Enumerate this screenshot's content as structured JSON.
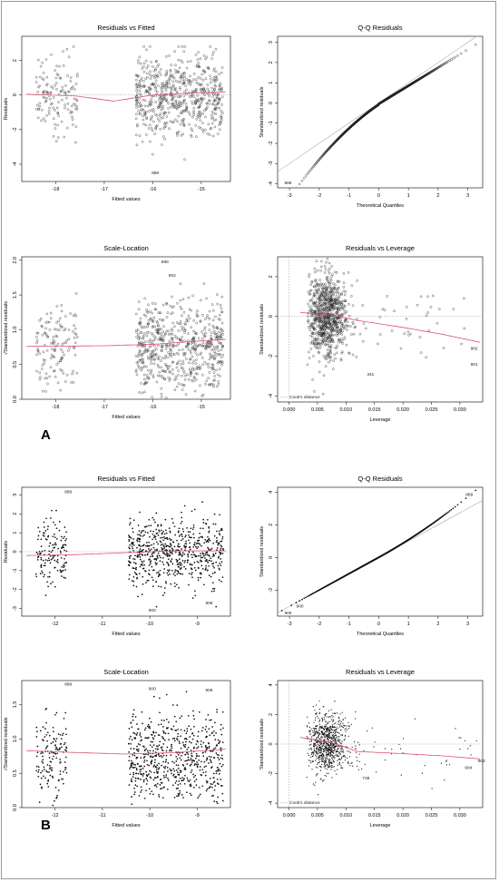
{
  "panel_labels": [
    "A",
    "B"
  ],
  "chart_data": [
    {
      "id": "A1",
      "type": "scatter",
      "title": "Residuals vs Fitted",
      "xlabel": "Fitted values",
      "ylabel": "Residuals",
      "xlim": [
        -18.7,
        -14.4
      ],
      "ylim": [
        -5,
        3.4
      ],
      "xticks": [
        -18,
        -17,
        -16,
        -15
      ],
      "yticks": [
        -4,
        -2,
        0,
        2
      ],
      "point_style": "open",
      "seed": 11,
      "clusters": [
        {
          "x": [
            -18.4,
            -17.55
          ],
          "n": 130
        },
        {
          "x": [
            -16.35,
            -14.55
          ],
          "n": 620
        }
      ],
      "y_model": "residuals",
      "y_center": 0,
      "y_sd": 1.15,
      "y_min": -4.6,
      "y_max": 2.8,
      "smoother": {
        "x": [
          -18.6,
          -17.6,
          -16.8,
          -16.0,
          -15.2,
          -14.5
        ],
        "y": [
          0.05,
          -0.05,
          -0.35,
          0.0,
          0.12,
          0.18
        ]
      },
      "reference_line": "zero",
      "labels": [
        {
          "x": -15.95,
          "y": -4.5,
          "text": "888"
        }
      ]
    },
    {
      "id": "A2",
      "type": "scatter",
      "title": "Q-Q Residuals",
      "xlabel": "Theoretical Quantiles",
      "ylabel": "Standardized residuals",
      "xlim": [
        -3.4,
        3.5
      ],
      "ylim": [
        -4.2,
        3.3
      ],
      "xticks": [
        -3,
        -2,
        -1,
        0,
        1,
        2,
        3
      ],
      "yticks": [
        -4,
        -3,
        -2,
        -1,
        0,
        1,
        2,
        3
      ],
      "point_style": "open",
      "seed": 12,
      "qq": {
        "n": 900,
        "skew": "left",
        "tail": -3.9
      },
      "labels": [
        {
          "x": -3.05,
          "y": -3.95,
          "text": "888"
        }
      ]
    },
    {
      "id": "A3",
      "type": "scatter",
      "title": "Scale-Location",
      "xlabel": "Fitted values",
      "ylabel": "√Standardized residuals",
      "xlim": [
        -18.7,
        -14.4
      ],
      "ylim": [
        0,
        2.05
      ],
      "xticks": [
        -18,
        -17,
        -16,
        -15
      ],
      "yticks": [
        0.0,
        0.5,
        1.0,
        1.5,
        2.0
      ],
      "point_style": "open",
      "seed": 13,
      "clusters": [
        {
          "x": [
            -18.4,
            -17.55
          ],
          "n": 130
        },
        {
          "x": [
            -16.35,
            -14.55
          ],
          "n": 620
        }
      ],
      "y_model": "sqrt",
      "y_min": 0.02,
      "y_max": 1.8,
      "smoother": {
        "x": [
          -18.6,
          -17.0,
          -16.0,
          -15.0,
          -14.5
        ],
        "y": [
          0.76,
          0.77,
          0.79,
          0.84,
          0.86
        ]
      },
      "labels": [
        {
          "x": -15.75,
          "y": 1.98,
          "text": "888"
        },
        {
          "x": -15.6,
          "y": 1.78,
          "text": "902"
        }
      ]
    },
    {
      "id": "A4",
      "type": "scatter",
      "title": "Residuals vs Leverage",
      "xlabel": "Leverage",
      "ylabel": "Standardized residuals",
      "xlim": [
        -0.002,
        0.034
      ],
      "ylim": [
        -4.3,
        3.0
      ],
      "xticks": [
        0.0,
        0.005,
        0.01,
        0.015,
        0.02,
        0.025,
        0.03
      ],
      "xtick_labels": [
        "0.000",
        "0.005",
        "0.010",
        "0.015",
        "0.020",
        "0.025",
        "0.030"
      ],
      "yticks": [
        -4,
        -2,
        0,
        2
      ],
      "point_style": "open",
      "seed": 14,
      "leverage": {
        "bulk": [
          0.003,
          0.011
        ],
        "n": 820,
        "sparse_n": 40
      },
      "smoother": {
        "x": [
          0.002,
          0.008,
          0.012,
          0.02,
          0.027,
          0.0335
        ],
        "y": [
          0.2,
          0.05,
          -0.2,
          -0.55,
          -0.9,
          -1.3
        ]
      },
      "reference_line": "zero",
      "vertical_dotted": 0.0,
      "legend": "Cook's distance",
      "labels": [
        {
          "x": 0.0143,
          "y": -2.9,
          "text": "341"
        },
        {
          "x": 0.0325,
          "y": -1.6,
          "text": "902"
        },
        {
          "x": 0.0325,
          "y": -2.4,
          "text": "901"
        }
      ]
    },
    {
      "id": "B1",
      "type": "scatter",
      "title": "Residuals vs Fitted",
      "xlabel": "Fitted values",
      "ylabel": "Residuals",
      "xlim": [
        -12.7,
        -8.3
      ],
      "ylim": [
        -3.4,
        3.4
      ],
      "xticks": [
        -12,
        -11,
        -10,
        -9
      ],
      "yticks": [
        -3,
        -2,
        -1,
        0,
        1,
        2,
        3
      ],
      "point_style": "filled",
      "seed": 21,
      "clusters": [
        {
          "x": [
            -12.4,
            -11.75
          ],
          "n": 140
        },
        {
          "x": [
            -10.45,
            -8.45
          ],
          "n": 650
        }
      ],
      "y_model": "residuals",
      "y_center": 0,
      "y_sd": 0.9,
      "y_min": -2.9,
      "y_max": 3.1,
      "smoother": {
        "x": [
          -12.6,
          -11.5,
          -10.5,
          -9.5,
          -8.4
        ],
        "y": [
          -0.2,
          -0.15,
          -0.05,
          0.05,
          0.05
        ]
      },
      "reference_line": "zero",
      "labels": [
        {
          "x": -11.72,
          "y": 3.15,
          "text": "889"
        },
        {
          "x": -9.95,
          "y": -3.1,
          "text": "900"
        },
        {
          "x": -8.75,
          "y": -2.7,
          "text": "908"
        }
      ]
    },
    {
      "id": "B2",
      "type": "scatter",
      "title": "Q-Q Residuals",
      "xlabel": "Theoretical Quantiles",
      "ylabel": "Standardized residuals",
      "xlim": [
        -3.4,
        3.5
      ],
      "ylim": [
        -3.6,
        4.3
      ],
      "xticks": [
        -3,
        -2,
        -1,
        0,
        1,
        2,
        3
      ],
      "yticks": [
        -2,
        0,
        2,
        4
      ],
      "point_style": "filled",
      "seed": 22,
      "qq": {
        "n": 900,
        "skew": "right",
        "tail": 3.7
      },
      "labels": [
        {
          "x": 3.05,
          "y": 3.85,
          "text": "889"
        },
        {
          "x": -2.65,
          "y": -3.0,
          "text": "900"
        },
        {
          "x": -3.05,
          "y": -3.4,
          "text": "900"
        }
      ]
    },
    {
      "id": "B3",
      "type": "scatter",
      "title": "Scale-Location",
      "xlabel": "Fitted values",
      "ylabel": "√Standardized residuals",
      "xlim": [
        -12.7,
        -8.3
      ],
      "ylim": [
        0,
        1.85
      ],
      "xticks": [
        -12,
        -11,
        -10,
        -9
      ],
      "yticks": [
        0.0,
        0.5,
        1.0,
        1.5
      ],
      "point_style": "filled",
      "seed": 23,
      "clusters": [
        {
          "x": [
            -12.4,
            -11.75
          ],
          "n": 140
        },
        {
          "x": [
            -10.45,
            -8.45
          ],
          "n": 650
        }
      ],
      "y_model": "sqrt",
      "y_min": 0.02,
      "y_max": 1.7,
      "smoother": {
        "x": [
          -12.6,
          -11.5,
          -10.5,
          -9.5,
          -8.4
        ],
        "y": [
          0.83,
          0.8,
          0.78,
          0.8,
          0.85
        ]
      },
      "labels": [
        {
          "x": -11.72,
          "y": 1.8,
          "text": "889"
        },
        {
          "x": -9.95,
          "y": 1.73,
          "text": "900"
        },
        {
          "x": -8.75,
          "y": 1.71,
          "text": "908"
        }
      ]
    },
    {
      "id": "B4",
      "type": "scatter",
      "title": "Residuals vs Leverage",
      "xlabel": "Leverage",
      "ylabel": "Standardized residuals",
      "xlim": [
        -0.002,
        0.034
      ],
      "ylim": [
        -4.3,
        4.3
      ],
      "xticks": [
        0.0,
        0.005,
        0.01,
        0.015,
        0.02,
        0.025,
        0.03
      ],
      "xtick_labels": [
        "0.000",
        "0.005",
        "0.010",
        "0.015",
        "0.020",
        "0.025",
        "0.030"
      ],
      "yticks": [
        -4,
        -2,
        0,
        2,
        4
      ],
      "point_style": "small",
      "seed": 24,
      "leverage": {
        "bulk": [
          0.003,
          0.011
        ],
        "n": 820,
        "sparse_n": 45
      },
      "smoother": {
        "x": [
          0.002,
          0.007,
          0.012,
          0.02,
          0.027,
          0.0335
        ],
        "y": [
          0.45,
          0.15,
          -0.5,
          -0.65,
          -0.8,
          -1.0
        ]
      },
      "reference_line": "zero",
      "vertical_dotted": 0.0,
      "legend": "Cook's distance",
      "labels": [
        {
          "x": 0.0135,
          "y": -2.3,
          "text": "738"
        },
        {
          "x": 0.0315,
          "y": -1.6,
          "text": "904"
        },
        {
          "x": 0.0338,
          "y": -1.15,
          "text": "902"
        }
      ]
    }
  ]
}
